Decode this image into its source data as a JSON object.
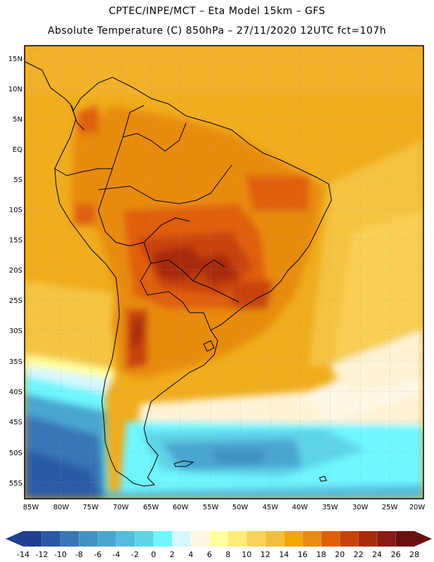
{
  "header": {
    "line1": "CPTEC/INPE/MCT  –   Eta Model 15km –  GFS",
    "line2": "Absolute Temperature (C) 850hPa – 27/11/2020 12UTC fct=107h"
  },
  "axes": {
    "lat_labels": [
      "15N",
      "10N",
      "5N",
      "EQ",
      "5S",
      "10S",
      "15S",
      "20S",
      "25S",
      "30S",
      "35S",
      "40S",
      "45S",
      "50S",
      "55S"
    ],
    "lon_labels": [
      "85W",
      "80W",
      "75W",
      "70W",
      "65W",
      "60W",
      "55W",
      "50W",
      "45W",
      "40W",
      "35W",
      "30W",
      "25W",
      "20W"
    ]
  },
  "colorbar": {
    "colors": [
      "#1f3f8f",
      "#2a5aa3",
      "#3775b4",
      "#4290c4",
      "#4aa6d0",
      "#54bcdd",
      "#5fd3e8",
      "#6ff6ff",
      "#d6f7ff",
      "#fff8e6",
      "#ffffa0",
      "#ffec7a",
      "#f8d25a",
      "#f2bf3c",
      "#f0a800",
      "#e88b10",
      "#e05e0a",
      "#c8420c",
      "#a82c0c",
      "#8a1c14",
      "#6a1010"
    ],
    "labels": [
      "-14",
      "-12",
      "-10",
      "-8",
      "-6",
      "-4",
      "-2",
      "0",
      "2",
      "4",
      "6",
      "8",
      "10",
      "12",
      "14",
      "16",
      "18",
      "20",
      "22",
      "24",
      "26",
      "28"
    ]
  },
  "legend_palette": {
    "ocean_north": "#f0ad1e",
    "ocean_mid": "#f6c94a",
    "warm": "#e88b10",
    "hot": "#c8420c",
    "hotter": "#a82c0c",
    "cold_pale": "#fff3d6",
    "cyan": "#5fd3e8",
    "blue": "#4290c4",
    "dark_blue": "#3775b4"
  }
}
